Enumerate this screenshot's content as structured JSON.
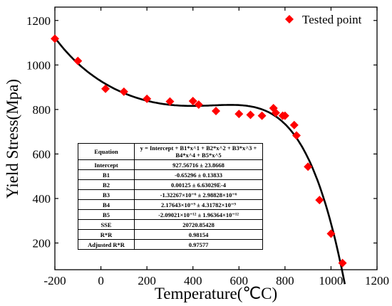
{
  "chart_data": {
    "type": "scatter",
    "xlabel": "Temperature(℃C)",
    "ylabel": "Yield Stress(Mpa)",
    "xlim": [
      -200,
      1200
    ],
    "ylim": [
      80,
      1260
    ],
    "xticks": [
      -200,
      0,
      200,
      400,
      600,
      800,
      1000,
      1200
    ],
    "yticks": [
      200,
      400,
      600,
      800,
      1000,
      1200
    ],
    "grid": false,
    "legend_position": "top-right",
    "series": [
      {
        "name": "Tested point",
        "color": "#ff0000",
        "marker": "diamond",
        "points": [
          [
            -200,
            1118
          ],
          [
            -100,
            1018
          ],
          [
            20,
            893
          ],
          [
            100,
            880
          ],
          [
            200,
            848
          ],
          [
            300,
            836
          ],
          [
            400,
            838
          ],
          [
            425,
            822
          ],
          [
            500,
            793
          ],
          [
            600,
            780
          ],
          [
            650,
            776
          ],
          [
            700,
            772
          ],
          [
            750,
            806
          ],
          [
            760,
            785
          ],
          [
            790,
            772
          ],
          [
            800,
            772
          ],
          [
            840,
            730
          ],
          [
            850,
            683
          ],
          [
            900,
            543
          ],
          [
            950,
            393
          ],
          [
            1000,
            242
          ],
          [
            1050,
            110
          ]
        ]
      }
    ],
    "fit": {
      "color": "#000000",
      "intercept": 927.56716,
      "coefficients": [
        -0.65296,
        0.00125,
        -1.32267e-06,
        2.17643e-09,
        -2.09021e-12
      ],
      "x_range": [
        -200,
        1060
      ]
    },
    "fit_table": {
      "header_label": "Equation",
      "header_value": "y = Intercept + B1*x^1 + B2*x^2 + B3*x^3 + B4*x^4 + B5*x^5",
      "rows": [
        {
          "label": "Intercept",
          "value": "927.56716 ± 23.8668"
        },
        {
          "label": "B1",
          "value": "-0.65296 ± 0.13833"
        },
        {
          "label": "B2",
          "value": "0.00125 ± 6.63029E-4"
        },
        {
          "label": "B3",
          "value": "-1.32267×10⁻⁶ ± 2.98828×10⁻⁶"
        },
        {
          "label": "B4",
          "value": "2.17643×10⁻⁹ ± 4.31782×10⁻⁹"
        },
        {
          "label": "B5",
          "value": "-2.09021×10⁻¹² ± 1.96364×10⁻¹²"
        },
        {
          "label": "SSE",
          "value": "20720.85428"
        },
        {
          "label": "R*R",
          "value": "0.98154"
        },
        {
          "label": "Adjusted R*R",
          "value": "0.97577"
        }
      ]
    }
  }
}
